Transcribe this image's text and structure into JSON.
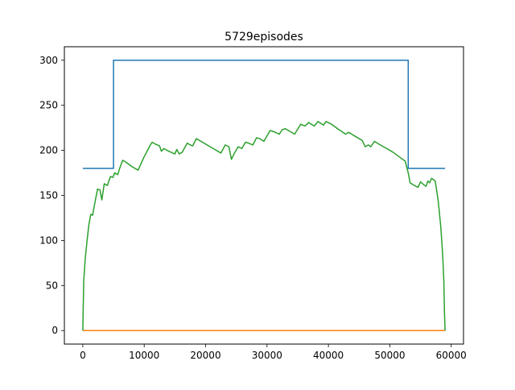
{
  "chart_data": {
    "type": "line",
    "title": "5729episodes",
    "xlabel": "",
    "ylabel": "",
    "xlim": [
      -3000,
      62000
    ],
    "ylim": [
      -15,
      315
    ],
    "x_ticks": [
      0,
      10000,
      20000,
      30000,
      40000,
      50000,
      60000
    ],
    "x_tick_labels": [
      "0",
      "10000",
      "20000",
      "30000",
      "40000",
      "50000",
      "60000"
    ],
    "y_ticks": [
      0,
      50,
      100,
      150,
      200,
      250,
      300
    ],
    "y_tick_labels": [
      "0",
      "50",
      "100",
      "150",
      "200",
      "250",
      "300"
    ],
    "grid": false,
    "legend": "none",
    "series": [
      {
        "color": "#1f77b4",
        "points": [
          [
            0,
            180
          ],
          [
            5000,
            180
          ],
          [
            5000,
            300
          ],
          [
            53000,
            300
          ],
          [
            53000,
            180
          ],
          [
            59000,
            180
          ]
        ]
      },
      {
        "color": "#ff7f0e",
        "points": [
          [
            0,
            0
          ],
          [
            59000,
            0
          ]
        ]
      },
      {
        "color": "#2ca02c",
        "points": [
          [
            0,
            0
          ],
          [
            150,
            55
          ],
          [
            400,
            80
          ],
          [
            700,
            100
          ],
          [
            1000,
            118
          ],
          [
            1300,
            129
          ],
          [
            1600,
            128
          ],
          [
            2000,
            143
          ],
          [
            2400,
            157
          ],
          [
            2800,
            156
          ],
          [
            3100,
            145
          ],
          [
            3500,
            163
          ],
          [
            4000,
            161
          ],
          [
            4500,
            171
          ],
          [
            4900,
            170
          ],
          [
            5200,
            175
          ],
          [
            5700,
            173
          ],
          [
            6000,
            180
          ],
          [
            6500,
            189
          ],
          [
            7000,
            187
          ],
          [
            8000,
            182
          ],
          [
            9000,
            178
          ],
          [
            10000,
            193
          ],
          [
            11000,
            206
          ],
          [
            11300,
            209
          ],
          [
            11800,
            207
          ],
          [
            12500,
            205
          ],
          [
            12800,
            199
          ],
          [
            13200,
            202
          ],
          [
            14000,
            199
          ],
          [
            15000,
            196
          ],
          [
            15300,
            201
          ],
          [
            15700,
            196
          ],
          [
            16200,
            198
          ],
          [
            17000,
            208
          ],
          [
            17500,
            206
          ],
          [
            17900,
            205
          ],
          [
            18500,
            213
          ],
          [
            19500,
            209
          ],
          [
            20500,
            205
          ],
          [
            21500,
            201
          ],
          [
            22500,
            197
          ],
          [
            23200,
            206
          ],
          [
            23800,
            204
          ],
          [
            24200,
            190
          ],
          [
            24700,
            197
          ],
          [
            25300,
            204
          ],
          [
            25900,
            202
          ],
          [
            26500,
            209
          ],
          [
            27000,
            208
          ],
          [
            27700,
            206
          ],
          [
            28300,
            214
          ],
          [
            28800,
            213
          ],
          [
            29500,
            210
          ],
          [
            30500,
            222
          ],
          [
            31000,
            221
          ],
          [
            32000,
            218
          ],
          [
            32500,
            223
          ],
          [
            33000,
            224
          ],
          [
            34500,
            218
          ],
          [
            35500,
            229
          ],
          [
            36200,
            227
          ],
          [
            36800,
            231
          ],
          [
            37200,
            229
          ],
          [
            37700,
            227
          ],
          [
            38300,
            232
          ],
          [
            39200,
            228
          ],
          [
            39600,
            232
          ],
          [
            40500,
            229
          ],
          [
            41500,
            224
          ],
          [
            42800,
            218
          ],
          [
            43300,
            220
          ],
          [
            44500,
            215
          ],
          [
            45500,
            211
          ],
          [
            46000,
            204
          ],
          [
            46500,
            206
          ],
          [
            46900,
            204
          ],
          [
            47500,
            210
          ],
          [
            48200,
            207
          ],
          [
            49500,
            202
          ],
          [
            50500,
            198
          ],
          [
            51500,
            193
          ],
          [
            52500,
            188
          ],
          [
            53000,
            175
          ],
          [
            53300,
            164
          ],
          [
            54000,
            161
          ],
          [
            54600,
            159
          ],
          [
            55000,
            165
          ],
          [
            55500,
            162
          ],
          [
            55900,
            160
          ],
          [
            56200,
            166
          ],
          [
            56500,
            164
          ],
          [
            56800,
            169
          ],
          [
            57400,
            166
          ],
          [
            57900,
            143
          ],
          [
            58300,
            115
          ],
          [
            58600,
            85
          ],
          [
            58800,
            55
          ],
          [
            58900,
            20
          ],
          [
            59000,
            0
          ]
        ]
      }
    ]
  }
}
